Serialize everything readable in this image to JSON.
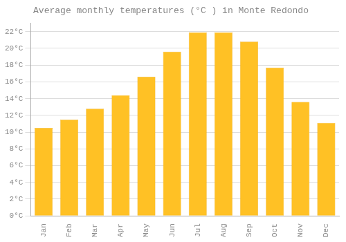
{
  "chart_data": {
    "type": "bar",
    "title": "Average monthly temperatures (°C ) in Monte Redondo",
    "categories": [
      "Jan",
      "Feb",
      "Mar",
      "Apr",
      "May",
      "Jun",
      "Jul",
      "Aug",
      "Sep",
      "Oct",
      "Nov",
      "Dec"
    ],
    "values": [
      10.5,
      11.5,
      12.8,
      14.4,
      16.6,
      19.6,
      21.9,
      21.9,
      20.8,
      17.7,
      13.6,
      11.1
    ],
    "color": "#FFC125",
    "ylim": [
      0,
      23
    ],
    "yticks": [
      {
        "value": 0,
        "label": "0°C"
      },
      {
        "value": 2,
        "label": "2°C"
      },
      {
        "value": 4,
        "label": "4°C"
      },
      {
        "value": 6,
        "label": "6°C"
      },
      {
        "value": 8,
        "label": "8°C"
      },
      {
        "value": 10,
        "label": "10°C"
      },
      {
        "value": 12,
        "label": "12°C"
      },
      {
        "value": 14,
        "label": "14°C"
      },
      {
        "value": 16,
        "label": "16°C"
      },
      {
        "value": 18,
        "label": "18°C"
      },
      {
        "value": 20,
        "label": "20°C"
      },
      {
        "value": 22,
        "label": "22°C"
      }
    ],
    "grid": true
  }
}
